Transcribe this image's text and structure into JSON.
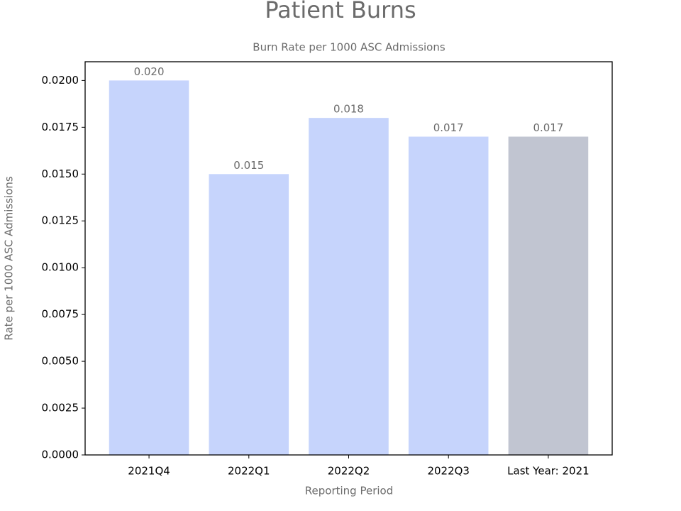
{
  "chart_data": {
    "type": "bar",
    "title": "Patient Burns",
    "subtitle": "Burn Rate per 1000 ASC Admissions",
    "xlabel": "Reporting Period",
    "ylabel": "Rate per 1000 ASC Admissions",
    "categories": [
      "2021Q4",
      "2022Q1",
      "2022Q2",
      "2022Q3",
      "Last Year: 2021"
    ],
    "values": [
      0.02,
      0.015,
      0.018,
      0.017,
      0.017
    ],
    "value_labels": [
      "0.020",
      "0.015",
      "0.018",
      "0.017",
      "0.017"
    ],
    "colors": [
      "#c6d4fc",
      "#c6d4fc",
      "#c6d4fc",
      "#c6d4fc",
      "#c1c5d1"
    ],
    "ylim": [
      0,
      0.021
    ],
    "yticks": [
      {
        "value": 0,
        "label": "0.0000"
      },
      {
        "value": 0.0025,
        "label": "0.0025"
      },
      {
        "value": 0.005,
        "label": "0.0050"
      },
      {
        "value": 0.0075,
        "label": "0.0075"
      },
      {
        "value": 0.01,
        "label": "0.0100"
      },
      {
        "value": 0.0125,
        "label": "0.0125"
      },
      {
        "value": 0.015,
        "label": "0.0150"
      },
      {
        "value": 0.0175,
        "label": "0.0175"
      },
      {
        "value": 0.02,
        "label": "0.0200"
      }
    ],
    "grid": false
  }
}
